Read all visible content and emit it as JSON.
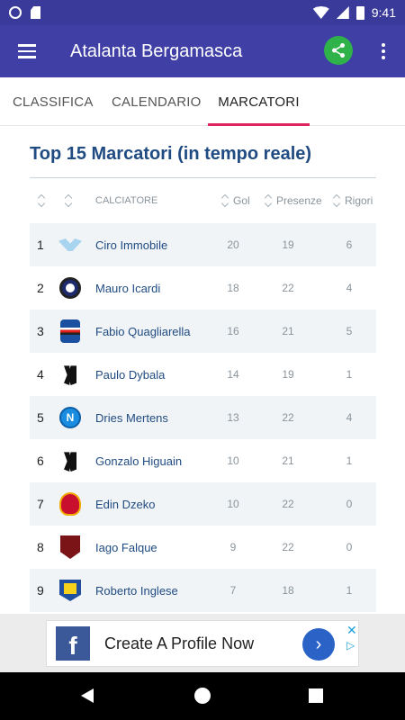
{
  "status_bar": {
    "time": "9:41"
  },
  "app_bar": {
    "title": "Atalanta Bergamasca",
    "share_icon": "share-icon",
    "more_icon": "more-vert-icon"
  },
  "tabs": [
    {
      "label": "CLASSIFICA",
      "active": false
    },
    {
      "label": "CALENDARIO",
      "active": false
    },
    {
      "label": "MARCATORI",
      "active": true
    }
  ],
  "section": {
    "title": "Top 15 Marcatori (in tempo reale)"
  },
  "table": {
    "headers": {
      "player": "CALCIATORE",
      "goals": "Gol",
      "apps": "Presenze",
      "pens": "Rigori"
    },
    "rows": [
      {
        "rank": "1",
        "logo": "lazio-logo",
        "player": "Ciro Immobile",
        "goals": "20",
        "apps": "19",
        "pens": "6"
      },
      {
        "rank": "2",
        "logo": "inter-logo",
        "player": "Mauro Icardi",
        "goals": "18",
        "apps": "22",
        "pens": "4"
      },
      {
        "rank": "3",
        "logo": "sampdoria-logo",
        "player": "Fabio Quagliarella",
        "goals": "16",
        "apps": "21",
        "pens": "5"
      },
      {
        "rank": "4",
        "logo": "juventus-logo",
        "player": "Paulo Dybala",
        "goals": "14",
        "apps": "19",
        "pens": "1"
      },
      {
        "rank": "5",
        "logo": "napoli-logo",
        "player": "Dries Mertens",
        "goals": "13",
        "apps": "22",
        "pens": "4"
      },
      {
        "rank": "6",
        "logo": "juventus-logo",
        "player": "Gonzalo Higuain",
        "goals": "10",
        "apps": "21",
        "pens": "1"
      },
      {
        "rank": "7",
        "logo": "roma-logo",
        "player": "Edin Dzeko",
        "goals": "10",
        "apps": "22",
        "pens": "0"
      },
      {
        "rank": "8",
        "logo": "torino-logo",
        "player": "Iago Falque",
        "goals": "9",
        "apps": "22",
        "pens": "0"
      },
      {
        "rank": "9",
        "logo": "chievo-logo",
        "player": "Roberto Inglese",
        "goals": "7",
        "apps": "18",
        "pens": "1"
      }
    ]
  },
  "ad": {
    "text": "Create A Profile Now",
    "close": "✕",
    "choices": "▷"
  },
  "colors": {
    "primary": "#3f3fa6",
    "accent": "#e0245e",
    "title_blue": "#1f4b82",
    "share_green": "#2fb24a"
  }
}
